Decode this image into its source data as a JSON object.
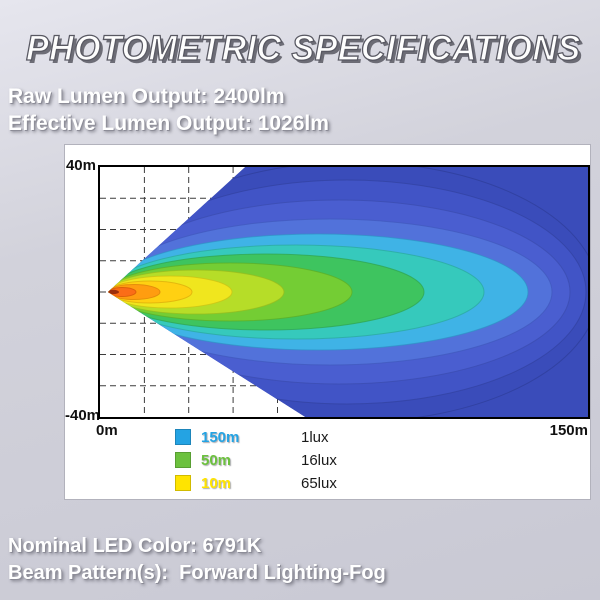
{
  "title": "PHOTOMETRIC SPECIFICATIONS",
  "specs": {
    "raw_lumen": "Raw Lumen Output: 2400lm",
    "effective_lumen": "Effective Lumen Output: 1026lm"
  },
  "chart": {
    "y_axis_top": "40m",
    "y_axis_bottom": "-40m",
    "x_axis_left": "0m",
    "x_axis_right": "150m",
    "legend": [
      {
        "distance": "150m",
        "lux": "1lux",
        "color": "#24a3e3"
      },
      {
        "distance": "50m",
        "lux": "16lux",
        "color": "#6cc13e"
      },
      {
        "distance": "10m",
        "lux": "65lux",
        "color": "#ffe400"
      }
    ]
  },
  "footer": {
    "nominal_led_color": "Nominal LED Color: 6791K",
    "beam_pattern": "Beam Pattern(s):  Forward Lighting-Fog"
  },
  "chart_data": {
    "type": "heatmap",
    "title": "Isolux beam pattern contour plot (forward lighting fog beam)",
    "x_axis": {
      "label_left": "0m",
      "label_right": "150m",
      "range_m": [
        0,
        150
      ]
    },
    "y_axis": {
      "label_top": "40m",
      "label_bottom": "-40m",
      "range_m": [
        -40,
        40
      ]
    },
    "grid": true,
    "legend_position": "bottom-left",
    "isolux_contours": [
      {
        "distance": "150m",
        "illuminance": "1lux",
        "swatch_color": "#24a3e3"
      },
      {
        "distance": "50m",
        "illuminance": "16lux",
        "swatch_color": "#6cc13e"
      },
      {
        "distance": "10m",
        "illuminance": "65lux",
        "swatch_color": "#ffe400"
      }
    ],
    "beam": {
      "origin_m": [
        0,
        0
      ],
      "hot_spot": "65lux within ~10m (yellow/orange core)",
      "mid_zone": "16lux out to ~50m (green)",
      "far_zone": "1lux out to ~150m (blue fan spreading to full ±40m width)"
    }
  }
}
